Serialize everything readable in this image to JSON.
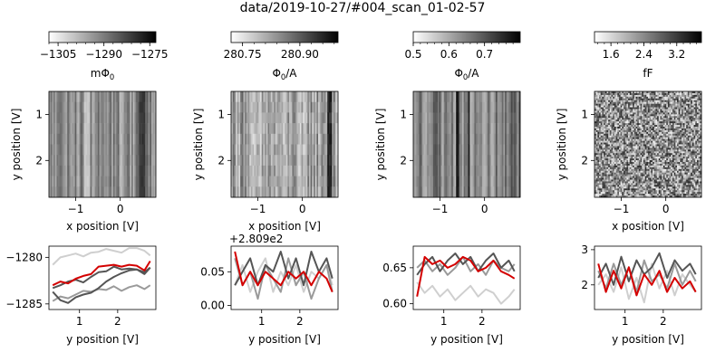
{
  "figure": {
    "title": "data/2019-10-27/#004_scan_01-02-57"
  },
  "colors": {
    "red": "#d40000",
    "dark": "#555555",
    "mid": "#9a9a9a",
    "light": "#cfcfcf",
    "axis": "#000000"
  },
  "chart_data": [
    {
      "type": "heatmap",
      "panel": 1,
      "title": "",
      "xlabel": "x position [V]",
      "ylabel": "y position [V]",
      "xlim": [
        -1.6,
        0.8
      ],
      "ylim": [
        2.8,
        0.5
      ],
      "xticks": [
        {
          "v": -1,
          "label": "−1"
        },
        {
          "v": 0,
          "label": "0"
        }
      ],
      "yticks": [
        {
          "v": 1,
          "label": "1"
        },
        {
          "v": 2,
          "label": "2"
        }
      ],
      "pattern": "stripes",
      "colorbar": {
        "label": "mΦ$_0$",
        "label_text": "mΦ",
        "label_sub": "0",
        "min": -1308,
        "max": -1273,
        "ticks": [
          {
            "v": -1305,
            "label": "−1305"
          },
          {
            "v": -1290,
            "label": "−1290"
          },
          {
            "v": -1275,
            "label": "−1275"
          }
        ],
        "colormap": "gray_r"
      }
    },
    {
      "type": "heatmap",
      "panel": 2,
      "title": "",
      "xlabel": "x position [V]",
      "ylabel": "y position [V]",
      "xlim": [
        -1.6,
        0.8
      ],
      "ylim": [
        2.8,
        0.5
      ],
      "xticks": [
        {
          "v": -1,
          "label": "−1"
        },
        {
          "v": 0,
          "label": "0"
        }
      ],
      "yticks": [
        {
          "v": 1,
          "label": "1"
        },
        {
          "v": 2,
          "label": "2"
        }
      ],
      "pattern": "noisy-stripes",
      "colorbar": {
        "label_text": "Φ",
        "label_sub": "0",
        "label_rest": "/A",
        "min": 280.72,
        "max": 281.0,
        "ticks": [
          {
            "v": 280.75,
            "label": "280.75"
          },
          {
            "v": 280.9,
            "label": "280.90"
          }
        ],
        "colormap": "gray_r"
      }
    },
    {
      "type": "heatmap",
      "panel": 3,
      "title": "",
      "xlabel": "",
      "ylabel": "y position [V]",
      "xlim": [
        -1.6,
        0.8
      ],
      "ylim": [
        2.8,
        0.5
      ],
      "xticks": [
        {
          "v": -1,
          "label": "−1"
        },
        {
          "v": 0,
          "label": "0"
        }
      ],
      "yticks": [
        {
          "v": 1,
          "label": "1"
        },
        {
          "v": 2,
          "label": "2"
        }
      ],
      "pattern": "dark-stripes",
      "colorbar": {
        "label_text": "Φ",
        "label_sub": "0",
        "label_rest": "/A",
        "min": 0.5,
        "max": 0.8,
        "ticks": [
          {
            "v": 0.5,
            "label": "0.5"
          },
          {
            "v": 0.6,
            "label": "0.6"
          },
          {
            "v": 0.7,
            "label": "0.7"
          }
        ],
        "colormap": "gray_r"
      }
    },
    {
      "type": "heatmap",
      "panel": 4,
      "title": "",
      "xlabel": "x position [V]",
      "ylabel": "y position [V]",
      "xlim": [
        -1.6,
        0.8
      ],
      "ylim": [
        2.8,
        0.5
      ],
      "xticks": [
        {
          "v": -1,
          "label": "−1"
        },
        {
          "v": 0,
          "label": "0"
        }
      ],
      "yticks": [
        {
          "v": 1,
          "label": "1"
        },
        {
          "v": 2,
          "label": "2"
        }
      ],
      "pattern": "noise",
      "colorbar": {
        "label_text": "fF",
        "min": 1.2,
        "max": 3.8,
        "ticks": [
          {
            "v": 1.6,
            "label": "1.6"
          },
          {
            "v": 2.4,
            "label": "2.4"
          },
          {
            "v": 3.2,
            "label": "3.2"
          }
        ],
        "colormap": "gray_r"
      }
    },
    {
      "type": "line",
      "panel": 5,
      "xlabel": "y position [V]",
      "ylabel": "",
      "xlim": [
        0.2,
        3.0
      ],
      "ylim": [
        -1285.6,
        -1278.8
      ],
      "xticks": [
        {
          "v": 1,
          "label": "1"
        },
        {
          "v": 2,
          "label": "2"
        }
      ],
      "yticks": [
        {
          "v": -1285,
          "label": "−1285"
        },
        {
          "v": -1280,
          "label": "−1280"
        }
      ],
      "offset_text": "",
      "x": [
        0.3,
        0.5,
        0.7,
        0.9,
        1.1,
        1.3,
        1.5,
        1.7,
        1.9,
        2.1,
        2.3,
        2.5,
        2.7,
        2.85
      ],
      "series": [
        {
          "color": "light",
          "values": [
            -1280.8,
            -1280.0,
            -1279.8,
            -1279.6,
            -1279.9,
            -1279.5,
            -1279.4,
            -1279.1,
            -1279.3,
            -1279.5,
            -1279.0,
            -1279.0,
            -1279.3,
            -1279.8
          ]
        },
        {
          "color": "mid",
          "values": [
            -1284.7,
            -1284.2,
            -1284.4,
            -1284.0,
            -1283.6,
            -1283.7,
            -1283.4,
            -1283.5,
            -1283.1,
            -1283.6,
            -1283.2,
            -1283.0,
            -1283.4,
            -1283.0
          ]
        },
        {
          "color": "dark",
          "values": [
            -1283.7,
            -1284.6,
            -1284.9,
            -1284.3,
            -1284.0,
            -1283.8,
            -1283.3,
            -1282.6,
            -1282.1,
            -1281.7,
            -1281.4,
            -1281.3,
            -1281.6,
            -1281.1
          ]
        },
        {
          "color": "dark",
          "values": [
            -1283.3,
            -1283.0,
            -1282.6,
            -1282.4,
            -1282.7,
            -1282.1,
            -1281.6,
            -1281.5,
            -1281.0,
            -1281.3,
            -1281.2,
            -1281.3,
            -1281.8,
            -1281.1
          ]
        },
        {
          "color": "red",
          "values": [
            -1283.0,
            -1282.6,
            -1282.8,
            -1282.3,
            -1282.0,
            -1281.8,
            -1281.0,
            -1280.9,
            -1280.8,
            -1281.0,
            -1280.8,
            -1280.9,
            -1281.4,
            -1280.4
          ]
        }
      ]
    },
    {
      "type": "line",
      "panel": 6,
      "xlabel": "y position [V]",
      "ylabel": "",
      "xlim": [
        0.2,
        3.0
      ],
      "ylim": [
        -0.006,
        0.088
      ],
      "xticks": [
        {
          "v": 1,
          "label": "1"
        },
        {
          "v": 2,
          "label": "2"
        }
      ],
      "yticks": [
        {
          "v": 0.0,
          "label": "0.00"
        },
        {
          "v": 0.05,
          "label": "0.05"
        }
      ],
      "offset_text": "+2.809e2",
      "x": [
        0.3,
        0.5,
        0.7,
        0.9,
        1.1,
        1.3,
        1.5,
        1.7,
        1.9,
        2.1,
        2.3,
        2.5,
        2.7,
        2.85
      ],
      "series": [
        {
          "color": "light",
          "values": [
            0.03,
            0.06,
            0.02,
            0.05,
            0.07,
            0.02,
            0.05,
            0.03,
            0.06,
            0.02,
            0.05,
            0.04,
            0.06,
            0.03
          ]
        },
        {
          "color": "mid",
          "values": [
            0.07,
            0.03,
            0.05,
            0.01,
            0.06,
            0.04,
            0.02,
            0.07,
            0.03,
            0.05,
            0.01,
            0.04,
            0.06,
            0.02
          ]
        },
        {
          "color": "dark",
          "values": [
            0.03,
            0.05,
            0.07,
            0.03,
            0.06,
            0.05,
            0.08,
            0.04,
            0.07,
            0.03,
            0.08,
            0.05,
            0.07,
            0.04
          ]
        },
        {
          "color": "red",
          "values": [
            0.08,
            0.03,
            0.05,
            0.03,
            0.05,
            0.04,
            0.03,
            0.05,
            0.04,
            0.05,
            0.03,
            0.05,
            0.04,
            0.02
          ]
        }
      ]
    },
    {
      "type": "line",
      "panel": 7,
      "xlabel": "y position [V]",
      "ylabel": "",
      "xlim": [
        0.2,
        3.0
      ],
      "ylim": [
        0.592,
        0.68
      ],
      "xticks": [
        {
          "v": 1,
          "label": "1"
        },
        {
          "v": 2,
          "label": "2"
        }
      ],
      "yticks": [
        {
          "v": 0.6,
          "label": "0.60"
        },
        {
          "v": 0.65,
          "label": "0.65"
        }
      ],
      "offset_text": "",
      "x": [
        0.3,
        0.5,
        0.7,
        0.9,
        1.1,
        1.3,
        1.5,
        1.7,
        1.9,
        2.1,
        2.3,
        2.5,
        2.7,
        2.85
      ],
      "series": [
        {
          "color": "light",
          "values": [
            0.63,
            0.615,
            0.625,
            0.61,
            0.62,
            0.605,
            0.615,
            0.625,
            0.61,
            0.62,
            0.615,
            0.6,
            0.61,
            0.62
          ]
        },
        {
          "color": "mid",
          "values": [
            0.65,
            0.66,
            0.645,
            0.655,
            0.64,
            0.65,
            0.665,
            0.645,
            0.655,
            0.64,
            0.66,
            0.65,
            0.645,
            0.655
          ]
        },
        {
          "color": "dark",
          "values": [
            0.64,
            0.655,
            0.665,
            0.645,
            0.66,
            0.67,
            0.655,
            0.665,
            0.645,
            0.66,
            0.67,
            0.65,
            0.66,
            0.645
          ]
        },
        {
          "color": "red",
          "values": [
            0.61,
            0.665,
            0.655,
            0.66,
            0.65,
            0.655,
            0.665,
            0.66,
            0.645,
            0.65,
            0.66,
            0.645,
            0.64,
            0.635
          ]
        }
      ]
    },
    {
      "type": "line",
      "panel": 8,
      "xlabel": "y position [V]",
      "ylabel": "",
      "xlim": [
        0.2,
        3.0
      ],
      "ylim": [
        1.3,
        3.1
      ],
      "xticks": [
        {
          "v": 1,
          "label": "1"
        },
        {
          "v": 2,
          "label": "2"
        }
      ],
      "yticks": [
        {
          "v": 2,
          "label": "2"
        },
        {
          "v": 3,
          "label": "3"
        }
      ],
      "offset_text": "",
      "x": [
        0.3,
        0.5,
        0.7,
        0.9,
        1.1,
        1.3,
        1.5,
        1.7,
        1.9,
        2.1,
        2.3,
        2.5,
        2.7,
        2.85
      ],
      "series": [
        {
          "color": "light",
          "values": [
            2.0,
            2.3,
            1.8,
            2.5,
            1.6,
            2.2,
            1.5,
            2.6,
            1.9,
            2.4,
            1.7,
            2.3,
            2.0,
            1.8
          ]
        },
        {
          "color": "mid",
          "values": [
            2.4,
            1.9,
            2.6,
            2.0,
            2.5,
            1.8,
            2.7,
            2.1,
            2.3,
            1.9,
            2.6,
            2.0,
            2.4,
            2.1
          ]
        },
        {
          "color": "dark",
          "values": [
            2.2,
            2.6,
            2.0,
            2.8,
            2.1,
            2.7,
            2.3,
            2.5,
            2.9,
            2.2,
            2.7,
            2.4,
            2.6,
            2.3
          ]
        },
        {
          "color": "red",
          "values": [
            2.6,
            1.8,
            2.4,
            1.9,
            2.5,
            1.7,
            2.3,
            2.0,
            2.4,
            1.8,
            2.2,
            1.9,
            2.1,
            1.8
          ]
        }
      ]
    }
  ]
}
